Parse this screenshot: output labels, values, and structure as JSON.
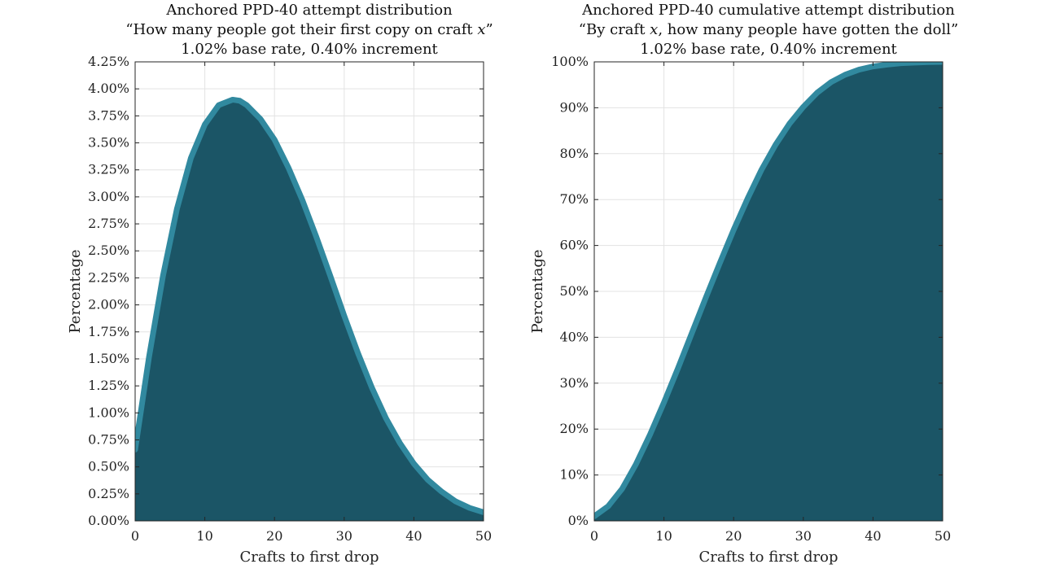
{
  "chart_data": [
    {
      "type": "area",
      "title_lines": [
        "Anchored PPD-40 attempt distribution",
        "“How many people got their first copy on craft x”",
        "1.02% base rate, 0.40% increment"
      ],
      "xlabel": "Crafts to first drop",
      "ylabel": "Percentage",
      "xlim": [
        0,
        50
      ],
      "ylim": [
        0,
        4.25
      ],
      "x_ticks": [
        0,
        10,
        20,
        30,
        40,
        50
      ],
      "x_tick_labels": [
        "0",
        "10",
        "20",
        "30",
        "40",
        "50"
      ],
      "y_ticks": [
        0,
        0.25,
        0.5,
        0.75,
        1.0,
        1.25,
        1.5,
        1.75,
        2.0,
        2.25,
        2.5,
        2.75,
        3.0,
        3.25,
        3.5,
        3.75,
        4.0,
        4.25
      ],
      "y_tick_labels": [
        "0.00%",
        "0.25%",
        "0.50%",
        "0.75%",
        "1.00%",
        "1.25%",
        "1.50%",
        "1.75%",
        "2.00%",
        "2.25%",
        "2.50%",
        "2.75%",
        "3.00%",
        "3.25%",
        "3.50%",
        "3.75%",
        "4.00%",
        "4.25%"
      ],
      "grid": true,
      "fill_color": "#1b5566",
      "line_color": "#31899f",
      "series": [
        {
          "x": [
            0,
            2,
            4,
            6,
            8,
            10,
            12,
            14,
            15,
            16,
            18,
            20,
            22,
            24,
            26,
            28,
            30,
            32,
            34,
            36,
            38,
            40,
            42,
            44,
            46,
            48,
            50
          ],
          "values": [
            0.66,
            1.52,
            2.27,
            2.89,
            3.36,
            3.67,
            3.85,
            3.9,
            3.89,
            3.85,
            3.72,
            3.53,
            3.27,
            2.97,
            2.63,
            2.27,
            1.9,
            1.55,
            1.23,
            0.95,
            0.72,
            0.53,
            0.38,
            0.27,
            0.18,
            0.12,
            0.08
          ]
        }
      ]
    },
    {
      "type": "area",
      "title_lines": [
        "Anchored PPD-40 cumulative attempt distribution",
        "“By craft x, how many people have gotten the doll”",
        "1.02% base rate, 0.40% increment"
      ],
      "xlabel": "Crafts to first drop",
      "ylabel": "Percentage",
      "xlim": [
        0,
        50
      ],
      "ylim": [
        0,
        100
      ],
      "x_ticks": [
        0,
        10,
        20,
        30,
        40,
        50
      ],
      "x_tick_labels": [
        "0",
        "10",
        "20",
        "30",
        "40",
        "50"
      ],
      "y_ticks": [
        0,
        10,
        20,
        30,
        40,
        50,
        60,
        70,
        80,
        90,
        100
      ],
      "y_tick_labels": [
        "0%",
        "10%",
        "20%",
        "30%",
        "40%",
        "50%",
        "60%",
        "70%",
        "80%",
        "90%",
        "100%"
      ],
      "grid": true,
      "fill_color": "#1b5566",
      "line_color": "#31899f",
      "series": [
        {
          "x": [
            0,
            2,
            4,
            6,
            8,
            10,
            12,
            14,
            16,
            18,
            20,
            22,
            24,
            26,
            28,
            30,
            32,
            34,
            36,
            38,
            40,
            42,
            44,
            46,
            48,
            50
          ],
          "values": [
            1.0,
            3.2,
            7.0,
            12.4,
            18.8,
            25.8,
            33.2,
            40.9,
            48.6,
            56.1,
            63.4,
            70.2,
            76.5,
            81.9,
            86.5,
            90.2,
            93.3,
            95.6,
            97.2,
            98.3,
            99.0,
            99.4,
            99.7,
            99.85,
            99.95,
            100.0
          ]
        }
      ]
    }
  ]
}
